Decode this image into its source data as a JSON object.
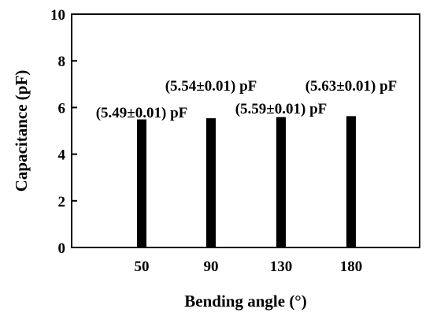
{
  "chart_data": {
    "type": "bar",
    "categories": [
      "50",
      "90",
      "130",
      "180"
    ],
    "values": [
      5.49,
      5.54,
      5.59,
      5.63
    ],
    "data_labels": [
      "(5.49±0.01) pF",
      "(5.54±0.01) pF",
      "(5.59±0.01) pF",
      "(5.63±0.01) pF"
    ],
    "xlabel": "Bending angle (°)",
    "ylabel": "Capacitance (pF)",
    "ylim": [
      0,
      10
    ],
    "yticks": [
      "0",
      "2",
      "4",
      "6",
      "8",
      "10"
    ],
    "grid": false,
    "legend": "none",
    "bar_color": "#000000"
  }
}
